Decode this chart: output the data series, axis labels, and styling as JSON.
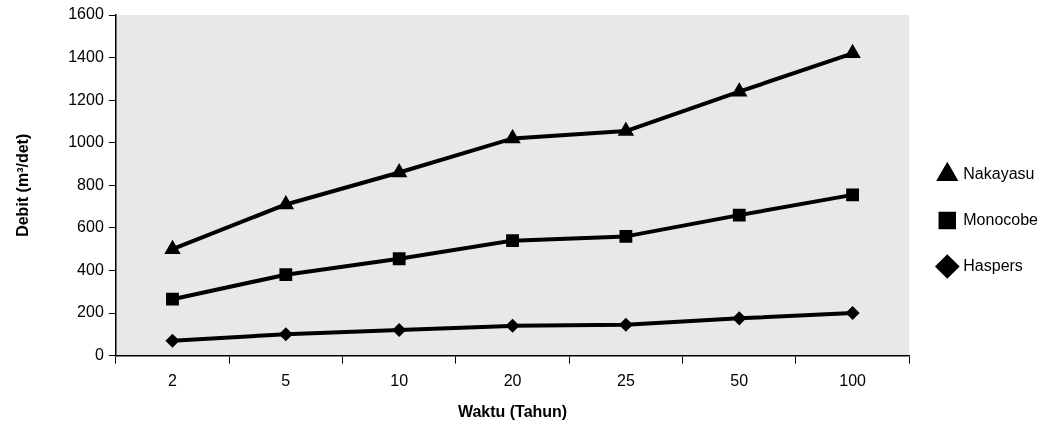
{
  "chart_data": {
    "type": "line",
    "xlabel": "Waktu (Tahun)",
    "ylabel": "Debit (m³/det)",
    "categories": [
      "2",
      "5",
      "10",
      "20",
      "25",
      "50",
      "100"
    ],
    "ylim": [
      0,
      1600
    ],
    "yticks": [
      0,
      200,
      400,
      600,
      800,
      1000,
      1200,
      1400,
      1600
    ],
    "grid": false,
    "legend": "right",
    "line_style": "solid",
    "series": [
      {
        "name": "Nakayasu",
        "color": "#000000",
        "marker": "triangle",
        "values": [
          500,
          710,
          860,
          1020,
          1055,
          1240,
          1420
        ]
      },
      {
        "name": "Monocobe",
        "color": "#000000",
        "marker": "square",
        "values": [
          265,
          380,
          455,
          540,
          560,
          660,
          755
        ]
      },
      {
        "name": "Haspers",
        "color": "#000000",
        "marker": "diamond",
        "values": [
          70,
          100,
          120,
          140,
          145,
          175,
          200
        ]
      }
    ]
  }
}
